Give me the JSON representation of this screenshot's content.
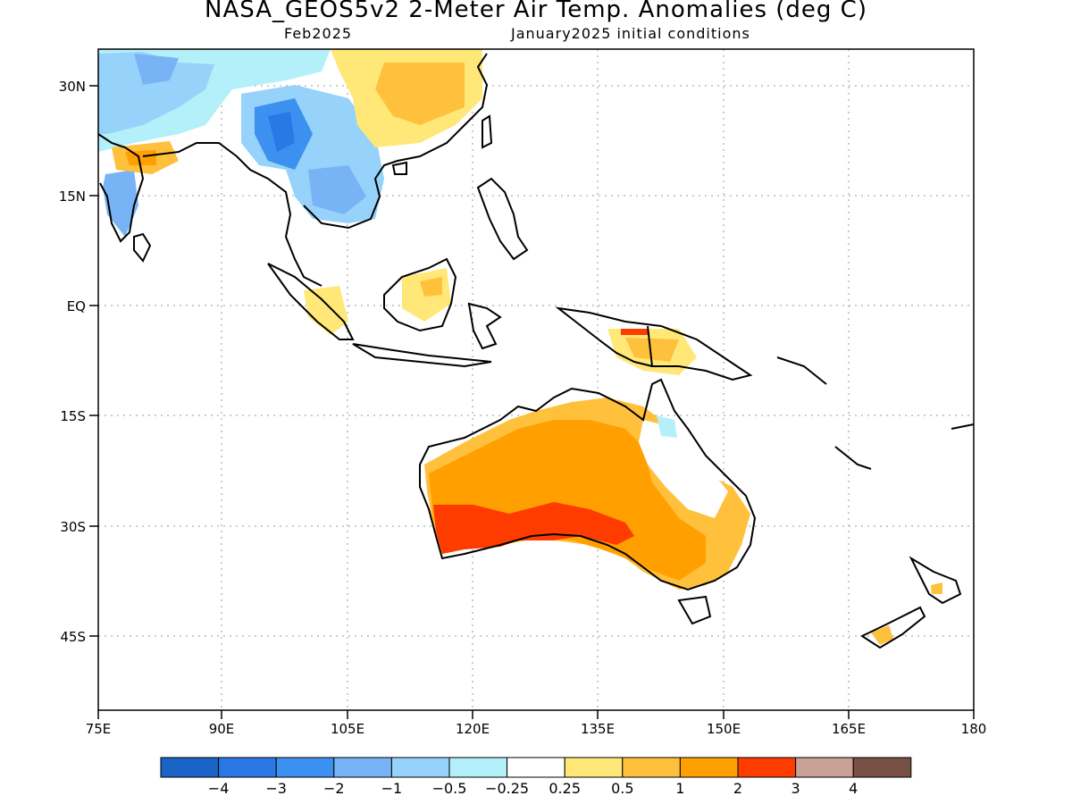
{
  "header": {
    "title": "NASA_GEOS5v2 2-Meter Air Temp. Anomalies (deg C)",
    "forecast_month": "Feb2025",
    "init_conditions": "January2025 initial conditions"
  },
  "axes": {
    "lat_labels": [
      "30N",
      "15N",
      "EQ",
      "15S",
      "30S",
      "45S"
    ],
    "lon_labels": [
      "75E",
      "90E",
      "105E",
      "120E",
      "135E",
      "150E",
      "165E",
      "180"
    ]
  },
  "colorbar": {
    "colors": [
      "#1a64c8",
      "#2a78e6",
      "#3c91f0",
      "#78b4f5",
      "#96d2fa",
      "#b4f0fa",
      "#ffffff",
      "#ffe878",
      "#ffc03c",
      "#ffa000",
      "#ff3c00",
      "#c8a096",
      "#785046"
    ],
    "labels": [
      "-4",
      "-3",
      "-2",
      "-1",
      "-0.5",
      "-0.25",
      "0.25",
      "0.5",
      "1",
      "2",
      "3",
      "4"
    ]
  },
  "map_features": {
    "regions": [
      "Indochina",
      "Southern China",
      "India",
      "Australia",
      "New Guinea",
      "New Zealand",
      "Borneo"
    ],
    "notable_anomaly": "Warm anomalies of 2 to 3 deg C over southern Australia; cold anomalies over Southeast Asia"
  }
}
